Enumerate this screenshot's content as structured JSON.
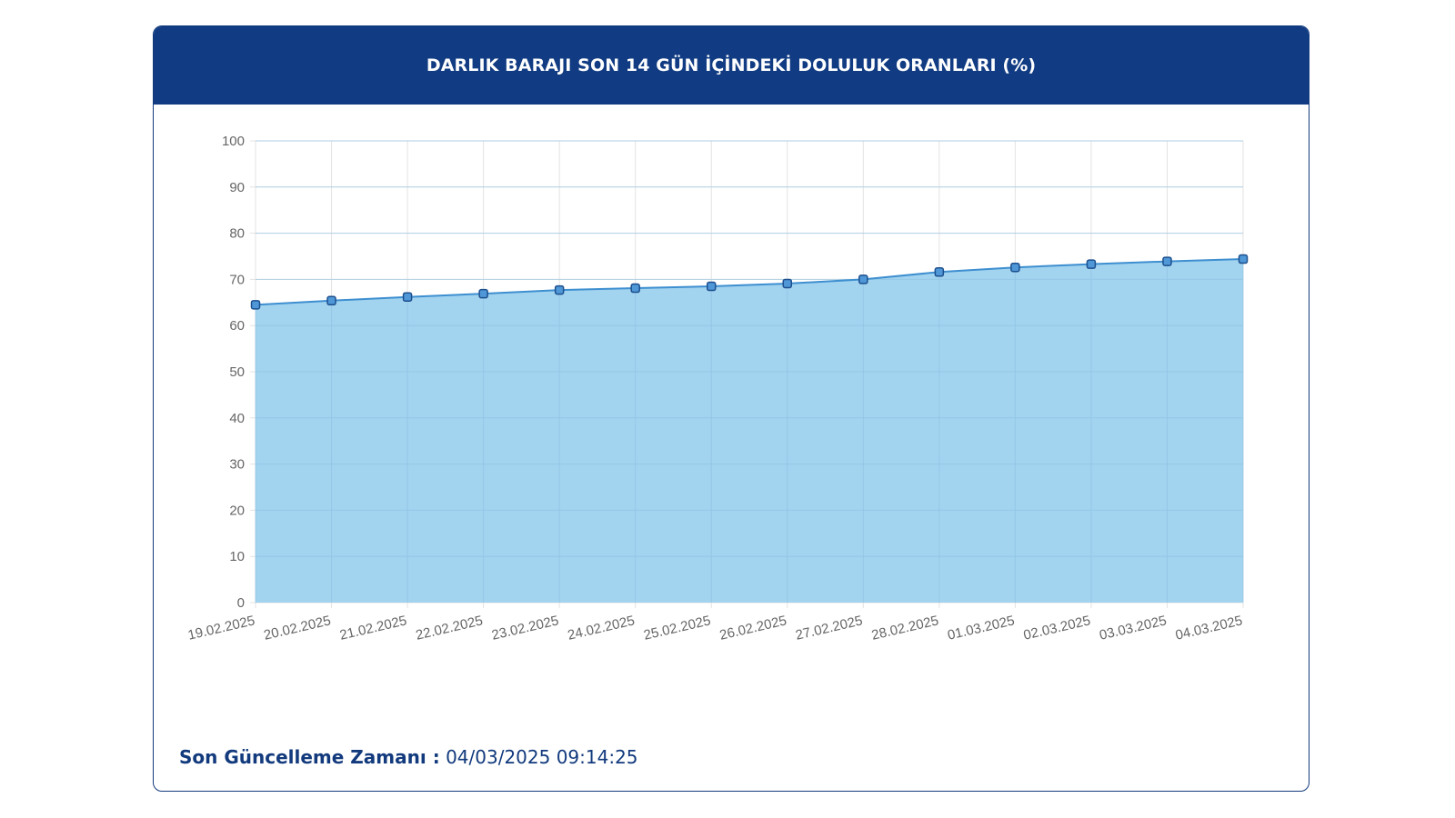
{
  "card": {
    "title": "DARLIK BARAJI SON 14 GÜN İÇİNDEKİ DOLULUK ORANLARI (%)"
  },
  "footer": {
    "label": "Son Güncelleme Zamanı :",
    "value": "04/03/2025 09:14:25"
  },
  "colors": {
    "header_bg": "#113b82",
    "line": "#3e8fd0",
    "fill": "#9dd1ee",
    "point_fill": "#4f97d6",
    "point_stroke": "#1d4f8e",
    "grid": "#e3e3e3"
  },
  "chart_data": {
    "type": "area",
    "title": "DARLIK BARAJI SON 14 GÜN İÇİNDEKİ DOLULUK ORANLARI (%)",
    "xlabel": "",
    "ylabel": "",
    "x": [
      "19.02.2025",
      "20.02.2025",
      "21.02.2025",
      "22.02.2025",
      "23.02.2025",
      "24.02.2025",
      "25.02.2025",
      "26.02.2025",
      "27.02.2025",
      "28.02.2025",
      "01.03.2025",
      "02.03.2025",
      "03.03.2025",
      "04.03.2025"
    ],
    "values": [
      64.5,
      65.4,
      66.2,
      66.9,
      67.7,
      68.1,
      68.5,
      69.1,
      70.0,
      71.6,
      72.6,
      73.3,
      73.9,
      74.4
    ],
    "ylim": [
      0,
      100
    ],
    "yticks": [
      0,
      10,
      20,
      30,
      40,
      50,
      60,
      70,
      80,
      90,
      100
    ],
    "grid": true,
    "legend": "none"
  }
}
